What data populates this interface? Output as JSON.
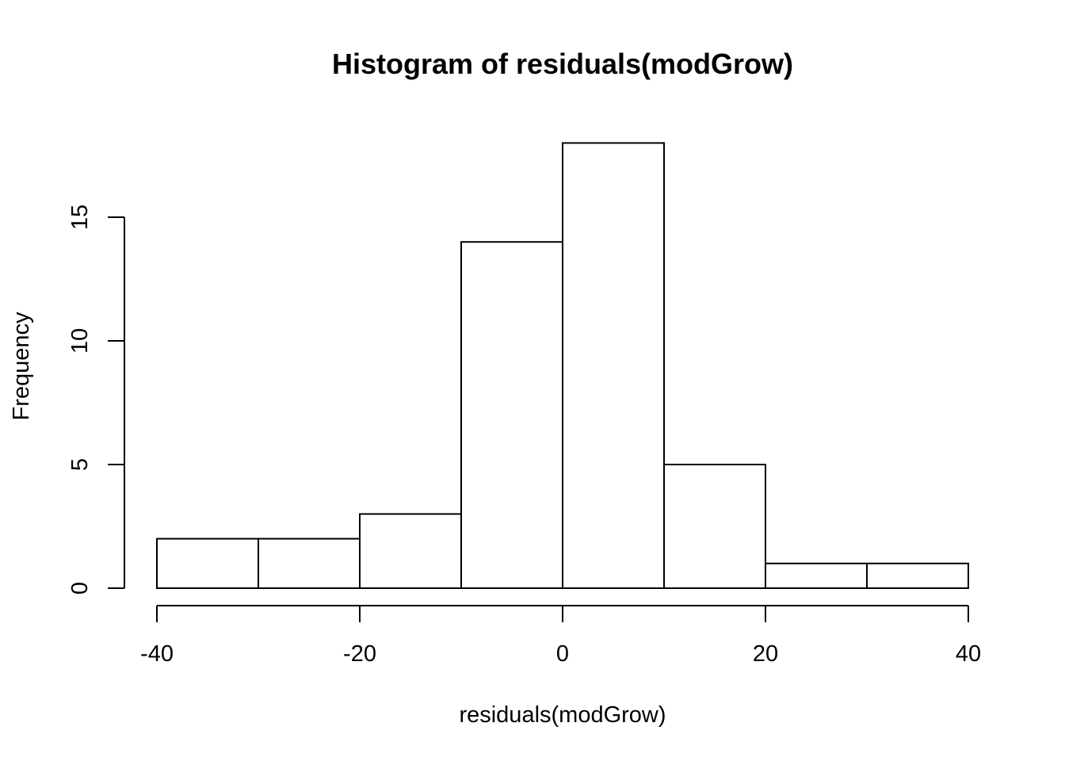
{
  "chart_data": {
    "type": "bar",
    "title": "Histogram of residuals(modGrow)",
    "xlabel": "residuals(modGrow)",
    "ylabel": "Frequency",
    "bin_edges": [
      -40,
      -30,
      -20,
      -10,
      0,
      10,
      20,
      30,
      40
    ],
    "values": [
      2,
      2,
      3,
      14,
      18,
      5,
      1,
      1
    ],
    "xlim": [
      -40,
      40
    ],
    "ylim": [
      0,
      18
    ],
    "x_ticks": [
      -40,
      -20,
      0,
      20,
      40
    ],
    "y_ticks": [
      0,
      5,
      10,
      15
    ],
    "x_tick_labels": [
      "-40",
      "-20",
      "0",
      "20",
      "40"
    ],
    "y_tick_labels": [
      "0",
      "5",
      "10",
      "15"
    ],
    "grid": false,
    "colors": {
      "bar_fill": "#ffffff",
      "bar_stroke": "#000000"
    }
  }
}
